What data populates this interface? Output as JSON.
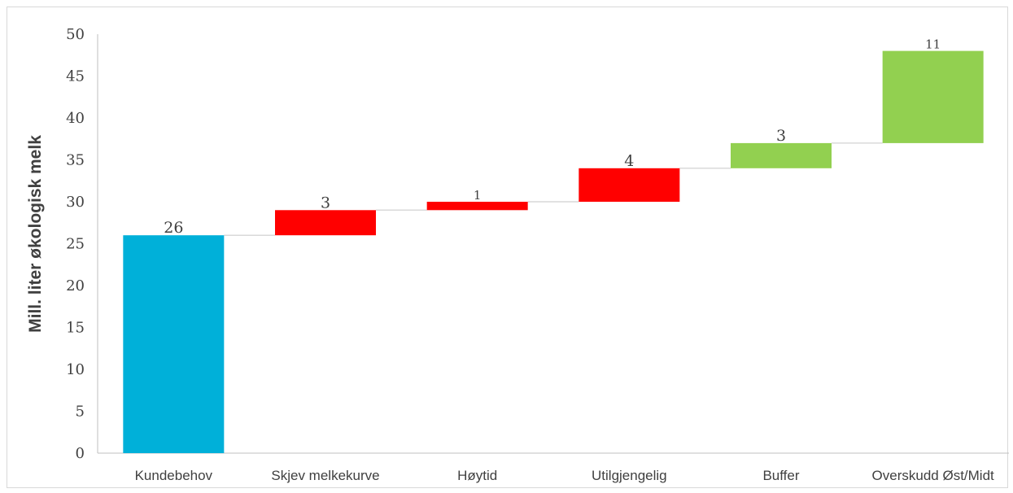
{
  "chart_data": {
    "type": "bar",
    "subtype": "waterfall",
    "ylabel": "Mill. liter økologisk melk",
    "xlabel": "",
    "title": "",
    "ylim": [
      0,
      50
    ],
    "yticks": [
      0,
      5,
      10,
      15,
      20,
      25,
      30,
      35,
      40,
      45,
      50
    ],
    "grid": false,
    "categories": [
      "Kundebehov",
      "Skjev melkekurve",
      "Høytid",
      "Utilgjengelig",
      "Buffer",
      "Overskudd Øst/Midt"
    ],
    "values": [
      26,
      3,
      1,
      4,
      3,
      11
    ],
    "bases": [
      0,
      26,
      29,
      30,
      34,
      37
    ],
    "data_labels": [
      "26",
      "3",
      "1",
      "4",
      "3",
      "11"
    ],
    "colors": [
      "#00B0D9",
      "#FF0000",
      "#FF0000",
      "#FF0000",
      "#92D050",
      "#92D050"
    ],
    "connector_color": "#d9d9d9",
    "axis_color": "#bfbfbf"
  }
}
